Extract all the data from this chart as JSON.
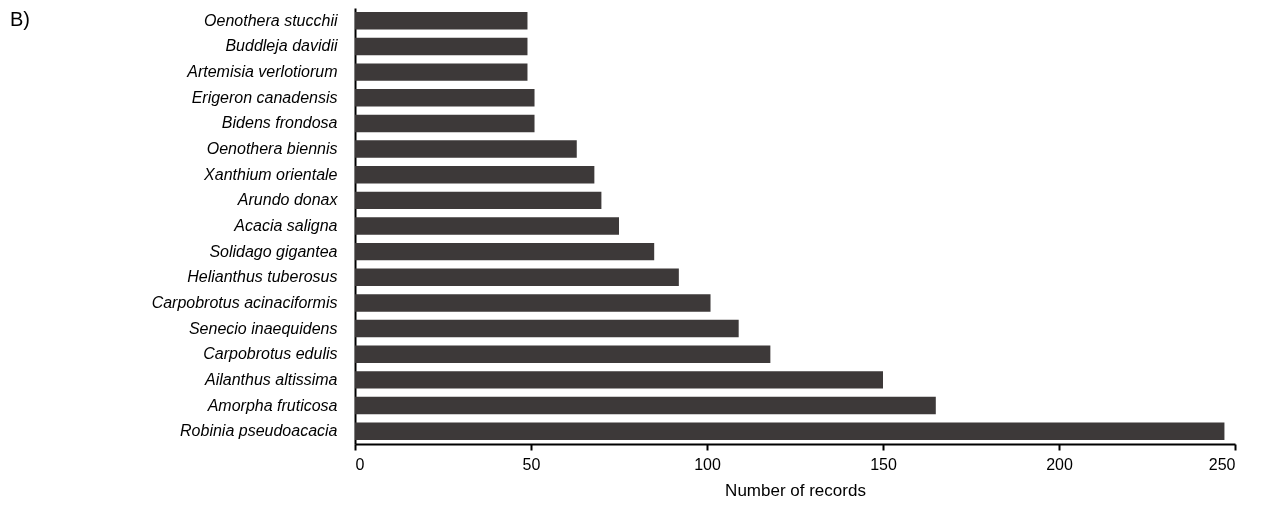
{
  "chart_data": {
    "type": "bar",
    "orientation": "horizontal",
    "xlabel": "Number of records",
    "annotations": [
      "B)"
    ],
    "categories": [
      "Oenothera stucchii",
      "Buddleja davidii",
      "Artemisia verlotiorum",
      "Erigeron canadensis",
      "Bidens frondosa",
      "Oenothera biennis",
      "Xanthium orientale",
      "Arundo donax",
      "Acacia saligna",
      "Solidago gigantea",
      "Helianthus tuberosus",
      "Carpobrotus acinaciformis",
      "Senecio inaequidens",
      "Carpobrotus edulis",
      "Ailanthus altissima",
      "Amorpha fruticosa",
      "Robinia pseudoacacia"
    ],
    "values": [
      49,
      49,
      49,
      51,
      51,
      63,
      68,
      70,
      75,
      85,
      92,
      101,
      109,
      118,
      150,
      165,
      247
    ],
    "color": "#3d3939",
    "xlim": [
      0,
      250
    ],
    "xticks": [
      0,
      50,
      100,
      150,
      200,
      250
    ],
    "grid": false
  }
}
